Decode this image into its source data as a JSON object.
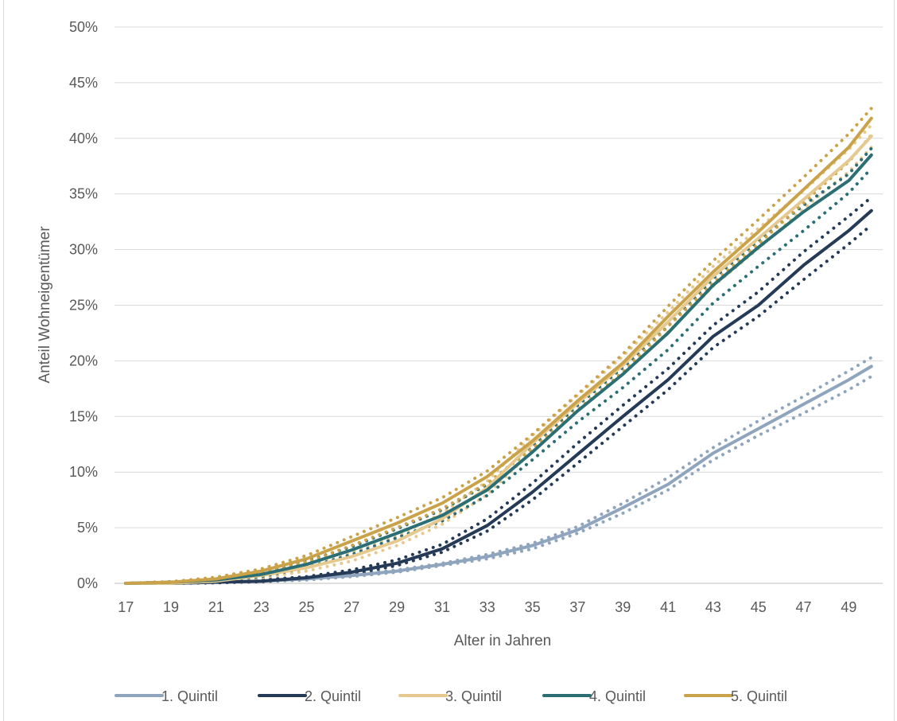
{
  "chart_data": {
    "type": "line",
    "xlabel": "Alter in Jahren",
    "ylabel": "Anteil Wohneigentümer",
    "ylim": [
      0,
      0.5
    ],
    "yticks": [
      "0%",
      "5%",
      "10%",
      "15%",
      "20%",
      "25%",
      "30%",
      "35%",
      "40%",
      "45%",
      "50%"
    ],
    "xlim": [
      17,
      50
    ],
    "xticks": [
      "17",
      "19",
      "21",
      "23",
      "25",
      "27",
      "29",
      "31",
      "33",
      "35",
      "37",
      "39",
      "41",
      "43",
      "45",
      "47",
      "49"
    ],
    "grid": "horizontal",
    "legend_position": "bottom",
    "x": [
      17,
      19,
      21,
      23,
      25,
      27,
      29,
      31,
      33,
      35,
      37,
      39,
      41,
      43,
      45,
      47,
      49,
      50
    ],
    "series": [
      {
        "name": "1. Quintil",
        "color": "#8fa5bd",
        "values": [
          0,
          0,
          0.001,
          0.002,
          0.004,
          0.007,
          0.011,
          0.017,
          0.024,
          0.034,
          0.048,
          0.068,
          0.089,
          0.117,
          0.139,
          0.161,
          0.183,
          0.195
        ],
        "band_upper": [
          0,
          0.0005,
          0.0015,
          0.003,
          0.005,
          0.008,
          0.012,
          0.018,
          0.026,
          0.036,
          0.051,
          0.072,
          0.095,
          0.122,
          0.146,
          0.168,
          0.191,
          0.203
        ],
        "band_lower": [
          0,
          0,
          0.0005,
          0.0015,
          0.003,
          0.006,
          0.01,
          0.016,
          0.022,
          0.031,
          0.045,
          0.063,
          0.084,
          0.111,
          0.133,
          0.153,
          0.174,
          0.186
        ]
      },
      {
        "name": "2. Quintil",
        "color": "#243a57",
        "values": [
          0,
          0,
          0.001,
          0.002,
          0.005,
          0.01,
          0.018,
          0.031,
          0.052,
          0.082,
          0.116,
          0.15,
          0.183,
          0.222,
          0.25,
          0.286,
          0.317,
          0.335
        ],
        "band_upper": [
          0,
          0.0005,
          0.0015,
          0.003,
          0.006,
          0.012,
          0.021,
          0.035,
          0.058,
          0.09,
          0.126,
          0.16,
          0.193,
          0.232,
          0.262,
          0.298,
          0.33,
          0.347
        ],
        "band_lower": [
          0,
          0,
          0.0005,
          0.0015,
          0.004,
          0.008,
          0.016,
          0.028,
          0.047,
          0.075,
          0.108,
          0.141,
          0.174,
          0.212,
          0.24,
          0.273,
          0.305,
          0.322
        ]
      },
      {
        "name": "3. Quintil",
        "color": "#e6c98f",
        "values": [
          0,
          0,
          0.002,
          0.007,
          0.014,
          0.024,
          0.038,
          0.058,
          0.086,
          0.126,
          0.162,
          0.196,
          0.235,
          0.276,
          0.31,
          0.345,
          0.38,
          0.402
        ],
        "band_upper": [
          0,
          0.001,
          0.003,
          0.009,
          0.017,
          0.028,
          0.042,
          0.063,
          0.092,
          0.133,
          0.169,
          0.204,
          0.244,
          0.285,
          0.319,
          0.353,
          0.39,
          0.412
        ],
        "band_lower": [
          0,
          0,
          0.001,
          0.005,
          0.011,
          0.02,
          0.034,
          0.053,
          0.08,
          0.119,
          0.155,
          0.188,
          0.226,
          0.267,
          0.301,
          0.337,
          0.37,
          0.392
        ]
      },
      {
        "name": "4. Quintil",
        "color": "#2b6f75",
        "values": [
          0,
          0.001,
          0.003,
          0.008,
          0.017,
          0.03,
          0.045,
          0.061,
          0.084,
          0.118,
          0.155,
          0.188,
          0.225,
          0.268,
          0.302,
          0.334,
          0.362,
          0.385
        ],
        "band_upper": [
          0,
          0.0015,
          0.0045,
          0.01,
          0.02,
          0.033,
          0.049,
          0.066,
          0.089,
          0.123,
          0.16,
          0.194,
          0.231,
          0.274,
          0.308,
          0.34,
          0.368,
          0.391
        ],
        "band_lower": [
          0,
          0.0005,
          0.002,
          0.006,
          0.014,
          0.026,
          0.041,
          0.056,
          0.079,
          0.111,
          0.145,
          0.176,
          0.21,
          0.252,
          0.285,
          0.317,
          0.351,
          0.373
        ]
      },
      {
        "name": "5. Quintil",
        "color": "#c9a24a",
        "values": [
          0,
          0.001,
          0.004,
          0.011,
          0.022,
          0.038,
          0.054,
          0.072,
          0.096,
          0.128,
          0.164,
          0.198,
          0.24,
          0.28,
          0.316,
          0.354,
          0.392,
          0.418
        ],
        "band_upper": [
          0,
          0.0015,
          0.0055,
          0.013,
          0.025,
          0.042,
          0.059,
          0.077,
          0.101,
          0.134,
          0.17,
          0.206,
          0.249,
          0.29,
          0.327,
          0.365,
          0.404,
          0.427
        ],
        "band_lower": [
          0,
          0.0005,
          0.003,
          0.009,
          0.019,
          0.034,
          0.05,
          0.067,
          0.09,
          0.121,
          0.156,
          0.19,
          0.231,
          0.27,
          0.305,
          0.342,
          0.379,
          0.403
        ]
      }
    ]
  }
}
